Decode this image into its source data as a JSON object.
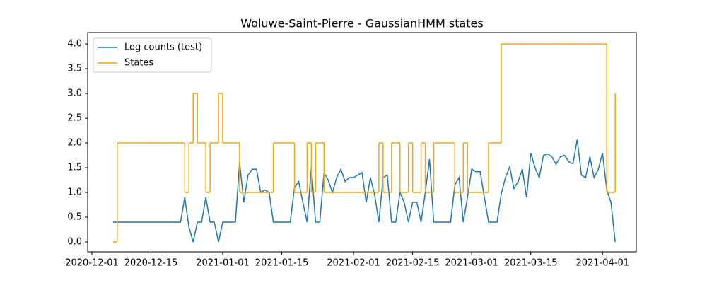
{
  "chart_data": {
    "type": "line",
    "title": "Woluwe-Saint-Pierre - GaussianHMM states",
    "x": [
      "2020-12-06",
      "2020-12-07",
      "2020-12-08",
      "2020-12-09",
      "2020-12-10",
      "2020-12-11",
      "2020-12-12",
      "2020-12-13",
      "2020-12-14",
      "2020-12-15",
      "2020-12-16",
      "2020-12-17",
      "2020-12-18",
      "2020-12-19",
      "2020-12-20",
      "2020-12-21",
      "2020-12-22",
      "2020-12-23",
      "2020-12-24",
      "2020-12-25",
      "2020-12-26",
      "2020-12-27",
      "2020-12-28",
      "2020-12-29",
      "2020-12-30",
      "2020-12-31",
      "2021-01-01",
      "2021-01-02",
      "2021-01-03",
      "2021-01-04",
      "2021-01-05",
      "2021-01-06",
      "2021-01-07",
      "2021-01-08",
      "2021-01-09",
      "2021-01-10",
      "2021-01-11",
      "2021-01-12",
      "2021-01-13",
      "2021-01-14",
      "2021-01-15",
      "2021-01-16",
      "2021-01-17",
      "2021-01-18",
      "2021-01-19",
      "2021-01-20",
      "2021-01-21",
      "2021-01-22",
      "2021-01-23",
      "2021-01-24",
      "2021-01-25",
      "2021-01-26",
      "2021-01-27",
      "2021-01-28",
      "2021-01-29",
      "2021-01-30",
      "2021-01-31",
      "2021-02-01",
      "2021-02-02",
      "2021-02-03",
      "2021-02-04",
      "2021-02-05",
      "2021-02-06",
      "2021-02-07",
      "2021-02-08",
      "2021-02-09",
      "2021-02-10",
      "2021-02-11",
      "2021-02-12",
      "2021-02-13",
      "2021-02-14",
      "2021-02-15",
      "2021-02-16",
      "2021-02-17",
      "2021-02-18",
      "2021-02-19",
      "2021-02-20",
      "2021-02-21",
      "2021-02-22",
      "2021-02-23",
      "2021-02-24",
      "2021-02-25",
      "2021-02-26",
      "2021-02-27",
      "2021-02-28",
      "2021-03-01",
      "2021-03-02",
      "2021-03-03",
      "2021-03-04",
      "2021-03-05",
      "2021-03-06",
      "2021-03-07",
      "2021-03-08",
      "2021-03-09",
      "2021-03-10",
      "2021-03-11",
      "2021-03-12",
      "2021-03-13",
      "2021-03-14",
      "2021-03-15",
      "2021-03-16",
      "2021-03-17",
      "2021-03-18",
      "2021-03-19",
      "2021-03-20",
      "2021-03-21",
      "2021-03-22",
      "2021-03-23",
      "2021-03-24",
      "2021-03-25",
      "2021-03-26",
      "2021-03-27",
      "2021-03-28",
      "2021-03-29",
      "2021-03-30",
      "2021-03-31",
      "2021-04-01",
      "2021-04-02",
      "2021-04-03",
      "2021-04-04"
    ],
    "series": [
      {
        "name": "Log counts (test)",
        "color": "#1f77b4",
        "values": [
          0.4,
          0.4,
          0.4,
          0.4,
          0.4,
          0.4,
          0.4,
          0.4,
          0.4,
          0.4,
          0.4,
          0.4,
          0.4,
          0.4,
          0.4,
          0.4,
          0.4,
          0.9,
          0.3,
          0.0,
          0.4,
          0.4,
          0.9,
          0.4,
          0.4,
          0.0,
          0.4,
          0.4,
          0.4,
          0.4,
          1.6,
          0.8,
          1.35,
          1.47,
          1.47,
          1.0,
          1.05,
          1.0,
          0.4,
          0.4,
          0.4,
          0.4,
          0.4,
          1.1,
          1.22,
          0.8,
          0.4,
          1.52,
          0.4,
          0.4,
          1.4,
          1.25,
          1.0,
          1.3,
          1.47,
          1.22,
          1.3,
          1.3,
          1.35,
          1.4,
          0.8,
          1.3,
          0.95,
          0.4,
          1.3,
          1.35,
          0.4,
          0.4,
          1.0,
          0.8,
          0.4,
          0.8,
          0.8,
          0.4,
          1.0,
          1.67,
          0.4,
          0.4,
          0.4,
          0.4,
          0.4,
          1.15,
          1.3,
          0.4,
          0.9,
          1.47,
          1.42,
          1.42,
          0.9,
          0.4,
          0.4,
          0.4,
          0.97,
          1.3,
          1.52,
          1.08,
          1.22,
          1.47,
          0.9,
          1.8,
          1.5,
          1.3,
          1.75,
          1.78,
          1.72,
          1.57,
          1.72,
          1.75,
          1.62,
          1.58,
          2.07,
          1.35,
          1.3,
          1.72,
          1.3,
          1.47,
          1.8,
          1.05,
          0.8,
          0.0
        ]
      },
      {
        "name": "States",
        "color": "#ffa500",
        "step": true,
        "values": [
          0,
          2,
          2,
          2,
          2,
          2,
          2,
          2,
          2,
          2,
          2,
          2,
          2,
          2,
          2,
          2,
          2,
          1,
          2,
          3,
          2,
          2,
          1,
          2,
          2,
          3,
          2,
          2,
          2,
          2,
          1,
          1,
          1,
          1,
          1,
          1,
          1,
          1,
          2,
          2,
          2,
          2,
          2,
          1,
          1,
          1,
          2,
          1,
          2,
          2,
          1,
          1,
          1,
          1,
          1,
          1,
          1,
          1,
          1,
          1,
          1,
          1,
          1,
          2,
          1,
          1,
          2,
          2,
          1,
          1,
          2,
          1,
          1,
          2,
          1,
          1,
          2,
          2,
          2,
          2,
          2,
          1,
          1,
          2,
          1,
          1,
          1,
          1,
          1,
          2,
          2,
          2,
          4,
          4,
          4,
          4,
          4,
          4,
          4,
          4,
          4,
          4,
          4,
          4,
          4,
          4,
          4,
          4,
          4,
          4,
          4,
          4,
          4,
          4,
          4,
          4,
          4,
          1,
          1,
          3
        ]
      }
    ],
    "xlim": [
      "2020-11-30",
      "2021-04-09"
    ],
    "xticks": [
      "2020-12-01",
      "2020-12-15",
      "2021-01-01",
      "2021-01-15",
      "2021-02-01",
      "2021-02-15",
      "2021-03-01",
      "2021-03-15",
      "2021-04-01"
    ],
    "ylim": [
      -0.2,
      4.23
    ],
    "yticks": [
      {
        "value": 0,
        "label": "0.0"
      },
      {
        "value": 0.5,
        "label": "0.5"
      },
      {
        "value": 1,
        "label": "1.0"
      },
      {
        "value": 1.5,
        "label": "1.5"
      },
      {
        "value": 2,
        "label": "2.0"
      },
      {
        "value": 2.5,
        "label": "2.5"
      },
      {
        "value": 3,
        "label": "3.0"
      },
      {
        "value": 3.5,
        "label": "3.5"
      },
      {
        "value": 4,
        "label": "4.0"
      }
    ],
    "legend": "upper left"
  }
}
